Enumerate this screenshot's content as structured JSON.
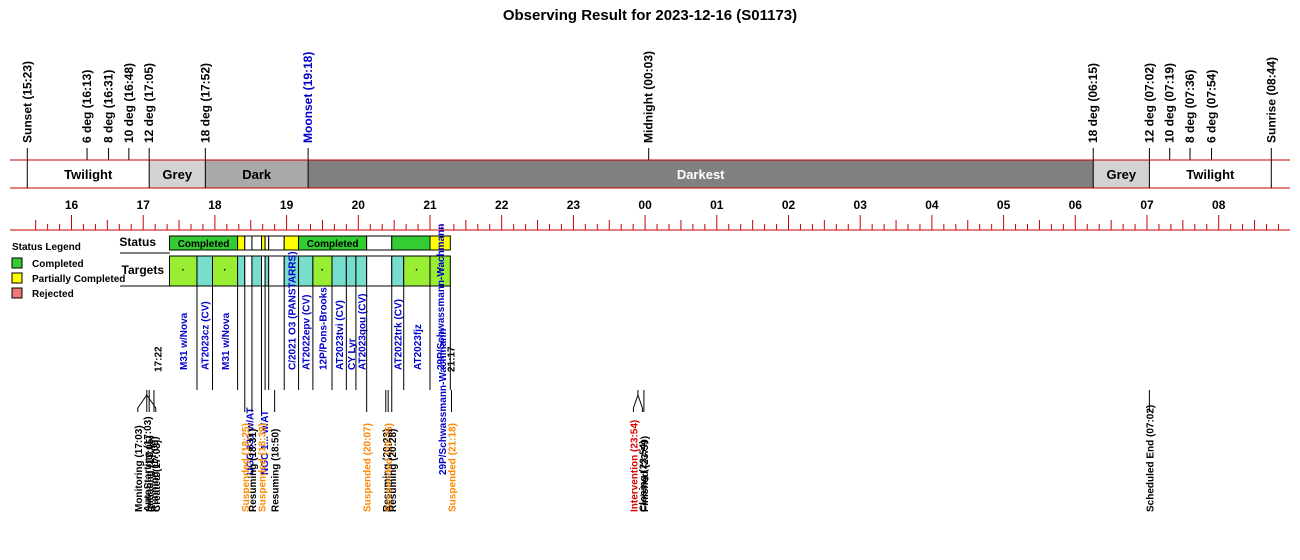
{
  "chart_data": {
    "type": "timeline",
    "title": "Observing Result for 2023-12-16 (S01173)",
    "events": [
      {
        "label": "Sunset (15:23)",
        "time": "15:23",
        "color": "#000000"
      },
      {
        "label": "6 deg (16:13)",
        "time": "16:13",
        "color": "#000000"
      },
      {
        "label": "8 deg (16:31)",
        "time": "16:31",
        "color": "#000000"
      },
      {
        "label": "10 deg (16:48)",
        "time": "16:48",
        "color": "#000000"
      },
      {
        "label": "12 deg (17:05)",
        "time": "17:05",
        "color": "#000000"
      },
      {
        "label": "18 deg (17:52)",
        "time": "17:52",
        "color": "#000000"
      },
      {
        "label": "Moonset (19:18)",
        "time": "19:18",
        "color": "#0000cc"
      },
      {
        "label": "Midnight (00:03)",
        "time": "24:03",
        "color": "#000000"
      },
      {
        "label": "18 deg (06:15)",
        "time": "30:15",
        "color": "#000000"
      },
      {
        "label": "12 deg (07:02)",
        "time": "31:02",
        "color": "#000000"
      },
      {
        "label": "10 deg (07:19)",
        "time": "31:19",
        "color": "#000000"
      },
      {
        "label": "8 deg (07:36)",
        "time": "31:36",
        "color": "#000000"
      },
      {
        "label": "6 deg (07:54)",
        "time": "31:54",
        "color": "#000000"
      },
      {
        "label": "Sunrise (08:44)",
        "time": "32:44",
        "color": "#000000"
      }
    ],
    "bands": [
      {
        "label": "",
        "start": "15:23",
        "end": "15:23",
        "color": "#ffffff"
      },
      {
        "label": "Twilight",
        "start": "15:23",
        "end": "17:05",
        "color": "#ffffff"
      },
      {
        "label": "Grey",
        "start": "17:05",
        "end": "17:52",
        "color": "#d3d3d3"
      },
      {
        "label": "Dark",
        "start": "17:52",
        "end": "19:18",
        "color": "#a9a9a9"
      },
      {
        "label": "Darkest",
        "start": "19:18",
        "end": "30:15",
        "color": "#808080"
      },
      {
        "label": "Grey",
        "start": "30:15",
        "end": "31:02",
        "color": "#d3d3d3"
      },
      {
        "label": "Twilight",
        "start": "31:02",
        "end": "32:44",
        "color": "#ffffff"
      }
    ],
    "hours": [
      "16",
      "17",
      "18",
      "19",
      "20",
      "21",
      "22",
      "23",
      "00",
      "01",
      "02",
      "03",
      "04",
      "05",
      "06",
      "07",
      "08"
    ],
    "row_labels": {
      "status": "Status",
      "targets": "Targets"
    },
    "status_blocks": [
      {
        "start": "17:22",
        "end": "18:19",
        "state": "completed",
        "label": "Completed"
      },
      {
        "start": "18:19",
        "end": "18:25",
        "state": "partial",
        "label": ""
      },
      {
        "start": "18:25",
        "end": "18:31",
        "state": "none",
        "label": ""
      },
      {
        "start": "18:31",
        "end": "18:39",
        "state": "none",
        "label": ""
      },
      {
        "start": "18:39",
        "end": "18:42",
        "state": "partial",
        "label": ""
      },
      {
        "start": "18:42",
        "end": "18:45",
        "state": "none",
        "label": ""
      },
      {
        "start": "18:45",
        "end": "18:58",
        "state": "none",
        "label": ""
      },
      {
        "start": "18:58",
        "end": "19:10",
        "state": "partial",
        "label": ""
      },
      {
        "start": "19:10",
        "end": "20:07",
        "state": "completed",
        "label": "Completed"
      },
      {
        "start": "20:07",
        "end": "20:28",
        "state": "none",
        "label": ""
      },
      {
        "start": "20:28",
        "end": "21:00",
        "state": "completed",
        "label": ""
      },
      {
        "start": "21:00",
        "end": "21:17",
        "state": "partial",
        "label": ""
      }
    ],
    "target_blocks": [
      {
        "start": "17:22",
        "end": "17:45",
        "color": "#99ee33",
        "star": true,
        "name": "M31 w/Nova",
        "color_name": "#0000cc"
      },
      {
        "start": "17:45",
        "end": "17:58",
        "color": "#77ddcc",
        "star": false,
        "name": "AT2023cz (CV)",
        "color_name": "#0000cc"
      },
      {
        "start": "17:58",
        "end": "18:19",
        "color": "#99ee33",
        "star": true,
        "name": "M31 w/Nova",
        "color_name": "#0000cc"
      },
      {
        "start": "18:19",
        "end": "18:25",
        "color": "#77ddcc",
        "star": false,
        "name": "",
        "color_name": "#0000cc"
      },
      {
        "start": "18:25",
        "end": "18:31",
        "color": "#ffffff",
        "star": false,
        "name": "",
        "color_name": "#0000cc"
      },
      {
        "start": "18:31",
        "end": "18:39",
        "color": "#77ddcc",
        "star": false,
        "name": "",
        "color_name": "#0000cc"
      },
      {
        "start": "18:39",
        "end": "18:42",
        "color": "#ffffff",
        "star": false,
        "name": "",
        "color_name": "#0000cc"
      },
      {
        "start": "18:42",
        "end": "18:45",
        "color": "#77ddcc",
        "star": false,
        "name": "",
        "color_name": "#0000cc"
      },
      {
        "start": "18:45",
        "end": "18:58",
        "color": "#ffffff",
        "star": false,
        "name": "",
        "color_name": "#0000cc"
      },
      {
        "start": "18:58",
        "end": "19:10",
        "color": "#77ddcc",
        "star": false,
        "name": "C/2021 O3 (PANSTARRS)",
        "color_name": "#0000cc"
      },
      {
        "start": "19:10",
        "end": "19:22",
        "color": "#77ddcc",
        "star": false,
        "name": "AT2022epv (CV)",
        "color_name": "#0000cc"
      },
      {
        "start": "19:22",
        "end": "19:38",
        "color": "#99ee33",
        "star": true,
        "name": "12P/Pons-Brooks",
        "color_name": "#0000cc"
      },
      {
        "start": "19:38",
        "end": "19:50",
        "color": "#77ddcc",
        "star": false,
        "name": "AT2023tvi (CV)",
        "color_name": "#0000cc"
      },
      {
        "start": "19:50",
        "end": "19:58",
        "color": "#77ddcc",
        "star": false,
        "name": "CY Lyr",
        "color_name": "#0000cc"
      },
      {
        "start": "19:58",
        "end": "20:07",
        "color": "#77ddcc",
        "star": false,
        "name": "AT2023qou (CV)",
        "color_name": "#0000cc"
      },
      {
        "start": "20:07",
        "end": "20:28",
        "color": "#ffffff",
        "star": false,
        "name": "",
        "color_name": "#0000cc"
      },
      {
        "start": "20:28",
        "end": "20:38",
        "color": "#77ddcc",
        "star": false,
        "name": "AT2022trk (CV)",
        "color_name": "#0000cc"
      },
      {
        "start": "20:38",
        "end": "21:00",
        "color": "#99ee33",
        "star": true,
        "name": "AT2023fjz",
        "color_name": "#0000cc"
      },
      {
        "start": "21:00",
        "end": "21:17",
        "color": "#99ee33",
        "star": true,
        "name": "29P/Schwassmann-Wachmann",
        "color_name": "#0000cc"
      }
    ],
    "time_marks": [
      {
        "label": "17:22",
        "time": "17:22"
      },
      {
        "label": "21:17",
        "time": "21:17"
      }
    ],
    "extra_target_labels": [
      {
        "label": "UGC 831 w/AT",
        "time": "18:29",
        "color": "#0000cc"
      },
      {
        "label": "NGC 1... w/AT",
        "time": "18:41",
        "color": "#0000cc"
      },
      {
        "label": "29P/Schwassmann-Wachmann",
        "time": "21:10",
        "color": "#0000cc"
      }
    ],
    "log_events": [
      {
        "label": "Monitoring (17:03)",
        "time": "17:03",
        "color": "#000000"
      },
      {
        "label": "AutoStarting (17:03)",
        "time": "17:03",
        "color": "#000000"
      },
      {
        "label": "Created (17:03)",
        "time": "17:03",
        "color": "#000000"
      },
      {
        "label": "Initiating (17:05)",
        "time": "17:05",
        "color": "#000000"
      },
      {
        "label": "Running (17:09)",
        "time": "17:09",
        "color": "#000000"
      },
      {
        "label": "Suspended (18:25)",
        "time": "18:25",
        "color": "#ff8800"
      },
      {
        "label": "Resuming (18:31)",
        "time": "18:31",
        "color": "#000000"
      },
      {
        "label": "Suspended (18:39)",
        "time": "18:39",
        "color": "#ff8800"
      },
      {
        "label": "Resuming (18:50)",
        "time": "18:50",
        "color": "#000000"
      },
      {
        "label": "Suspended (20:07)",
        "time": "20:07",
        "color": "#ff8800"
      },
      {
        "label": "Resuming (20:23)",
        "time": "20:23",
        "color": "#000000"
      },
      {
        "label": "Suspended (20:25)",
        "time": "20:25",
        "color": "#ff8800"
      },
      {
        "label": "Resuming (20:28)",
        "time": "20:28",
        "color": "#000000"
      },
      {
        "label": "Suspended (21:18)",
        "time": "21:18",
        "color": "#ff8800"
      },
      {
        "label": "Intervention (23:54)",
        "time": "23:54",
        "color": "#dd0000"
      },
      {
        "label": "Closing (23:54)",
        "time": "23:54",
        "color": "#000000"
      },
      {
        "label": "Finished (23:59)",
        "time": "23:59",
        "color": "#000000"
      },
      {
        "label": "Scheduled End (07:02)",
        "time": "31:02",
        "color": "#000000"
      }
    ],
    "legend": {
      "title": "Status Legend",
      "placement": "left",
      "items": [
        {
          "label": "Completed",
          "color": "#33cc33"
        },
        {
          "label": "Partially Completed",
          "color": "#ffff00"
        },
        {
          "label": "Rejected",
          "color": "#ee7777"
        }
      ]
    },
    "colors": {
      "completed": "#33cc33",
      "partial": "#ffff00",
      "none": "#ffffff",
      "axis_line": "#cc0000"
    }
  }
}
